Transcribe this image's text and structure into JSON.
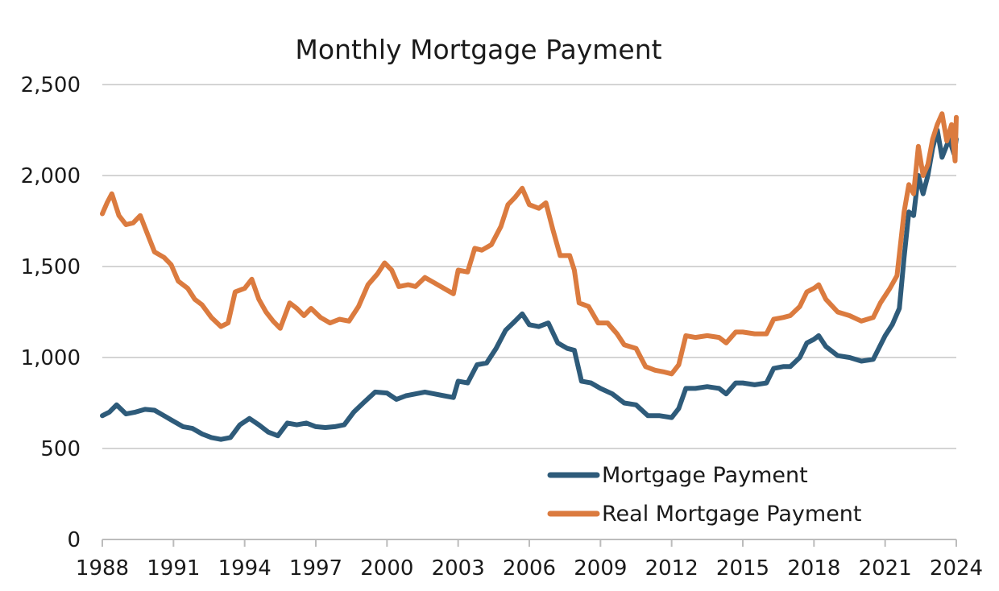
{
  "chart_data": {
    "type": "line",
    "title": "Monthly Mortgage Payment",
    "xlabel": "",
    "ylabel": "",
    "xlim": [
      1988,
      2024
    ],
    "ylim": [
      0,
      2500
    ],
    "x_ticks": [
      1988,
      1991,
      1994,
      1997,
      2000,
      2003,
      2006,
      2009,
      2012,
      2015,
      2018,
      2021,
      2024
    ],
    "y_ticks": [
      0,
      500,
      1000,
      1500,
      2000,
      2500
    ],
    "y_tick_labels": [
      "0",
      "500",
      "1,000",
      "1,500",
      "2,000",
      "2,500"
    ],
    "grid": true,
    "legend_position": "bottom-right",
    "series": [
      {
        "name": "Mortgage Payment",
        "color": "#2e5b7a",
        "points": [
          [
            1988.0,
            680
          ],
          [
            1988.3,
            700
          ],
          [
            1988.6,
            740
          ],
          [
            1989.0,
            690
          ],
          [
            1989.4,
            700
          ],
          [
            1989.8,
            715
          ],
          [
            1990.2,
            710
          ],
          [
            1990.6,
            680
          ],
          [
            1991.0,
            650
          ],
          [
            1991.4,
            620
          ],
          [
            1991.8,
            610
          ],
          [
            1992.2,
            580
          ],
          [
            1992.6,
            560
          ],
          [
            1993.0,
            550
          ],
          [
            1993.4,
            560
          ],
          [
            1993.8,
            630
          ],
          [
            1994.2,
            665
          ],
          [
            1994.6,
            630
          ],
          [
            1995.0,
            590
          ],
          [
            1995.4,
            570
          ],
          [
            1995.8,
            640
          ],
          [
            1996.2,
            630
          ],
          [
            1996.6,
            640
          ],
          [
            1997.0,
            620
          ],
          [
            1997.4,
            615
          ],
          [
            1997.8,
            620
          ],
          [
            1998.2,
            630
          ],
          [
            1998.6,
            700
          ],
          [
            1999.0,
            750
          ],
          [
            1999.5,
            810
          ],
          [
            2000.0,
            805
          ],
          [
            2000.4,
            770
          ],
          [
            2000.8,
            790
          ],
          [
            2001.2,
            800
          ],
          [
            2001.6,
            810
          ],
          [
            2002.0,
            800
          ],
          [
            2002.4,
            790
          ],
          [
            2002.8,
            780
          ],
          [
            2003.0,
            870
          ],
          [
            2003.4,
            860
          ],
          [
            2003.8,
            960
          ],
          [
            2004.2,
            970
          ],
          [
            2004.6,
            1050
          ],
          [
            2005.0,
            1150
          ],
          [
            2005.4,
            1200
          ],
          [
            2005.7,
            1240
          ],
          [
            2006.0,
            1180
          ],
          [
            2006.4,
            1170
          ],
          [
            2006.8,
            1190
          ],
          [
            2007.2,
            1080
          ],
          [
            2007.6,
            1050
          ],
          [
            2007.9,
            1040
          ],
          [
            2008.2,
            870
          ],
          [
            2008.6,
            860
          ],
          [
            2009.0,
            830
          ],
          [
            2009.5,
            800
          ],
          [
            2010.0,
            750
          ],
          [
            2010.5,
            740
          ],
          [
            2011.0,
            680
          ],
          [
            2011.5,
            680
          ],
          [
            2012.0,
            670
          ],
          [
            2012.3,
            720
          ],
          [
            2012.6,
            830
          ],
          [
            2013.0,
            830
          ],
          [
            2013.5,
            840
          ],
          [
            2014.0,
            830
          ],
          [
            2014.3,
            800
          ],
          [
            2014.7,
            860
          ],
          [
            2015.0,
            860
          ],
          [
            2015.5,
            850
          ],
          [
            2016.0,
            860
          ],
          [
            2016.3,
            940
          ],
          [
            2016.7,
            950
          ],
          [
            2017.0,
            950
          ],
          [
            2017.4,
            1000
          ],
          [
            2017.7,
            1080
          ],
          [
            2018.0,
            1100
          ],
          [
            2018.2,
            1120
          ],
          [
            2018.5,
            1060
          ],
          [
            2019.0,
            1010
          ],
          [
            2019.5,
            1000
          ],
          [
            2020.0,
            980
          ],
          [
            2020.5,
            990
          ],
          [
            2021.0,
            1120
          ],
          [
            2021.3,
            1180
          ],
          [
            2021.6,
            1270
          ],
          [
            2021.8,
            1550
          ],
          [
            2022.0,
            1800
          ],
          [
            2022.2,
            1780
          ],
          [
            2022.4,
            2000
          ],
          [
            2022.6,
            1900
          ],
          [
            2022.8,
            2000
          ],
          [
            2023.0,
            2150
          ],
          [
            2023.2,
            2250
          ],
          [
            2023.4,
            2100
          ],
          [
            2023.7,
            2200
          ],
          [
            2023.9,
            2120
          ],
          [
            2024.0,
            2200
          ]
        ]
      },
      {
        "name": "Real Mortgage Payment",
        "color": "#db7b3f",
        "points": [
          [
            1988.0,
            1790
          ],
          [
            1988.2,
            1850
          ],
          [
            1988.4,
            1900
          ],
          [
            1988.7,
            1780
          ],
          [
            1989.0,
            1730
          ],
          [
            1989.3,
            1740
          ],
          [
            1989.6,
            1780
          ],
          [
            1989.9,
            1680
          ],
          [
            1990.2,
            1580
          ],
          [
            1990.6,
            1550
          ],
          [
            1990.9,
            1510
          ],
          [
            1991.2,
            1420
          ],
          [
            1991.6,
            1380
          ],
          [
            1991.9,
            1320
          ],
          [
            1992.2,
            1290
          ],
          [
            1992.6,
            1220
          ],
          [
            1993.0,
            1170
          ],
          [
            1993.3,
            1190
          ],
          [
            1993.6,
            1360
          ],
          [
            1994.0,
            1380
          ],
          [
            1994.3,
            1430
          ],
          [
            1994.6,
            1320
          ],
          [
            1994.9,
            1250
          ],
          [
            1995.2,
            1200
          ],
          [
            1995.5,
            1160
          ],
          [
            1995.9,
            1300
          ],
          [
            1996.2,
            1270
          ],
          [
            1996.5,
            1230
          ],
          [
            1996.8,
            1270
          ],
          [
            1997.2,
            1220
          ],
          [
            1997.6,
            1190
          ],
          [
            1998.0,
            1210
          ],
          [
            1998.4,
            1200
          ],
          [
            1998.8,
            1280
          ],
          [
            1999.2,
            1400
          ],
          [
            1999.6,
            1460
          ],
          [
            1999.9,
            1520
          ],
          [
            2000.2,
            1480
          ],
          [
            2000.5,
            1390
          ],
          [
            2000.9,
            1400
          ],
          [
            2001.2,
            1390
          ],
          [
            2001.6,
            1440
          ],
          [
            2002.0,
            1410
          ],
          [
            2002.4,
            1380
          ],
          [
            2002.8,
            1350
          ],
          [
            2003.0,
            1480
          ],
          [
            2003.4,
            1470
          ],
          [
            2003.7,
            1600
          ],
          [
            2004.0,
            1590
          ],
          [
            2004.4,
            1620
          ],
          [
            2004.8,
            1720
          ],
          [
            2005.1,
            1840
          ],
          [
            2005.4,
            1880
          ],
          [
            2005.7,
            1930
          ],
          [
            2006.0,
            1840
          ],
          [
            2006.4,
            1820
          ],
          [
            2006.7,
            1850
          ],
          [
            2007.0,
            1700
          ],
          [
            2007.3,
            1560
          ],
          [
            2007.7,
            1560
          ],
          [
            2007.9,
            1480
          ],
          [
            2008.1,
            1300
          ],
          [
            2008.5,
            1280
          ],
          [
            2008.9,
            1190
          ],
          [
            2009.3,
            1190
          ],
          [
            2009.7,
            1130
          ],
          [
            2010.0,
            1070
          ],
          [
            2010.5,
            1050
          ],
          [
            2010.9,
            950
          ],
          [
            2011.3,
            930
          ],
          [
            2011.7,
            920
          ],
          [
            2012.0,
            910
          ],
          [
            2012.3,
            960
          ],
          [
            2012.6,
            1120
          ],
          [
            2013.0,
            1110
          ],
          [
            2013.5,
            1120
          ],
          [
            2014.0,
            1110
          ],
          [
            2014.3,
            1080
          ],
          [
            2014.7,
            1140
          ],
          [
            2015.0,
            1140
          ],
          [
            2015.5,
            1130
          ],
          [
            2016.0,
            1130
          ],
          [
            2016.3,
            1210
          ],
          [
            2016.7,
            1220
          ],
          [
            2017.0,
            1230
          ],
          [
            2017.4,
            1280
          ],
          [
            2017.7,
            1360
          ],
          [
            2018.0,
            1380
          ],
          [
            2018.2,
            1400
          ],
          [
            2018.5,
            1320
          ],
          [
            2019.0,
            1250
          ],
          [
            2019.5,
            1230
          ],
          [
            2020.0,
            1200
          ],
          [
            2020.5,
            1220
          ],
          [
            2020.8,
            1300
          ],
          [
            2021.2,
            1380
          ],
          [
            2021.5,
            1450
          ],
          [
            2021.8,
            1800
          ],
          [
            2022.0,
            1950
          ],
          [
            2022.2,
            1900
          ],
          [
            2022.4,
            2160
          ],
          [
            2022.6,
            2000
          ],
          [
            2022.8,
            2060
          ],
          [
            2023.0,
            2200
          ],
          [
            2023.2,
            2280
          ],
          [
            2023.4,
            2340
          ],
          [
            2023.6,
            2190
          ],
          [
            2023.8,
            2280
          ],
          [
            2023.95,
            2080
          ],
          [
            2024.0,
            2320
          ]
        ]
      }
    ]
  }
}
